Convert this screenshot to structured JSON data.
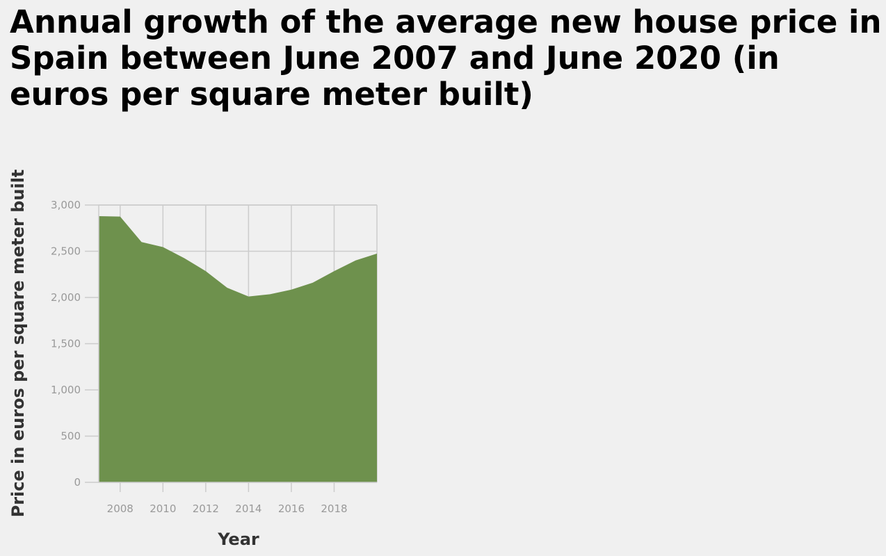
{
  "chart_data": {
    "type": "area",
    "title": "Annual growth of the average new house price in Spain between June 2007 and June 2020 (in euros per square meter built)",
    "xlabel": "Year",
    "ylabel": "Price in euros per square meter built",
    "x": [
      2007,
      2008,
      2009,
      2010,
      2011,
      2012,
      2013,
      2014,
      2015,
      2016,
      2017,
      2018,
      2019,
      2020
    ],
    "values": [
      2880,
      2875,
      2600,
      2545,
      2425,
      2285,
      2105,
      2010,
      2035,
      2085,
      2160,
      2285,
      2400,
      2475
    ],
    "xlim": [
      2007,
      2020
    ],
    "ylim": [
      0,
      3000
    ],
    "x_ticks": [
      "2008",
      "2010",
      "2012",
      "2014",
      "2016",
      "2018"
    ],
    "y_ticks": [
      "0",
      "500",
      "1,000",
      "1,500",
      "2,000",
      "2,500",
      "3,000"
    ],
    "fill_color": "#6e914d",
    "grid": true,
    "legend": "none"
  }
}
